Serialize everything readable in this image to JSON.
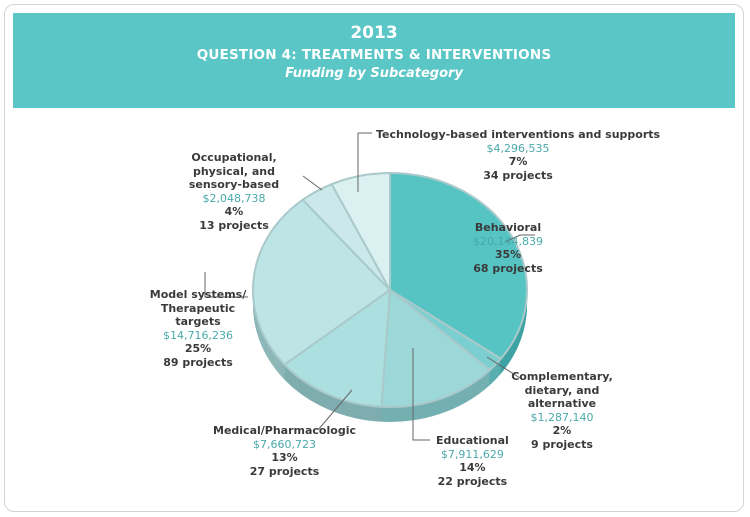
{
  "header": {
    "year": "2013",
    "question": "QUESTION 4: TREATMENTS & INTERVENTIONS",
    "subtitle": "Funding by Subcategory"
  },
  "chart_data": {
    "type": "pie",
    "title": "2013 QUESTION 4: TREATMENTS & INTERVENTIONS — Funding by Subcategory",
    "slices": [
      {
        "label": "Behavioral",
        "amount": "$20,144,839",
        "percent_label": "35%",
        "projects": "68 projects",
        "value": 35,
        "color": "#57c4c4",
        "side": "#3fa3a4"
      },
      {
        "label": "Complementary, dietary, and alternative",
        "amount": "$1,287,140",
        "percent_label": "2%",
        "projects": "9 projects",
        "value": 2,
        "color": "#7ccfd0",
        "side": "#5aaeaf"
      },
      {
        "label": "Educational",
        "amount": "$7,911,629",
        "percent_label": "14%",
        "projects": "22 projects",
        "value": 14,
        "color": "#9dd8d9",
        "side": "#74b0b2"
      },
      {
        "label": "Medical/Pharmacologic",
        "amount": "$7,660,723",
        "percent_label": "13%",
        "projects": "27 projects",
        "value": 13,
        "color": "#acdfe0",
        "side": "#7fadaf"
      },
      {
        "label": "Model systems/ Therapeutic targets",
        "amount": "$14,716,236",
        "percent_label": "25%",
        "projects": "89 projects",
        "value": 25,
        "color": "#bde5e6",
        "side": "#8db7b8"
      },
      {
        "label": "Occupational, physical, and sensory-based",
        "amount": "$2,048,738",
        "percent_label": "4%",
        "projects": "13 projects",
        "value": 4,
        "color": "#cbe9ea",
        "side": "#9fc3c4"
      },
      {
        "label": "Technology-based interventions and supports",
        "amount": "$4,296,535",
        "percent_label": "7%",
        "projects": "34 projects",
        "value": 7,
        "color": "#daf0f1",
        "side": "#aecdce"
      }
    ]
  }
}
